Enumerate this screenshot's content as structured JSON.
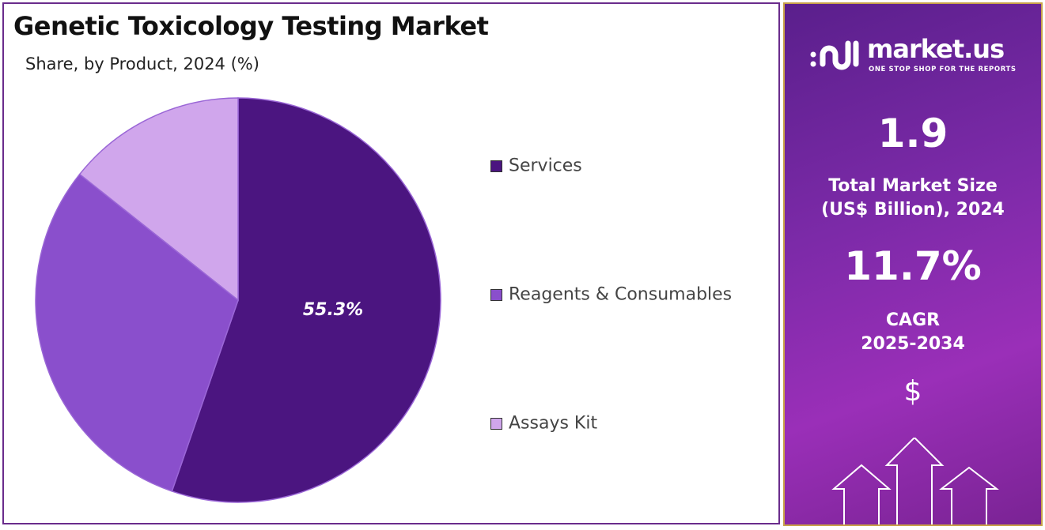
{
  "chart_data": {
    "type": "pie",
    "title": "Genetic Toxicology Testing Market",
    "subtitle": "Share, by Product, 2024 (%)",
    "categories": [
      "Services",
      "Reagents & Consumables",
      "Assays Kit"
    ],
    "values": [
      55.3,
      30.4,
      14.3
    ],
    "colors": [
      "#4b1580",
      "#8a4fcc",
      "#d0a6ec"
    ],
    "data_labels": [
      "55.3%",
      "",
      ""
    ],
    "legend_position": "right",
    "start_angle": "top, clockwise"
  },
  "side_panel": {
    "logo_name": "market.us",
    "logo_tagline": "ONE STOP SHOP FOR THE REPORTS",
    "market_size": "1.9",
    "market_size_label_1": "Total Market Size",
    "market_size_label_2": "(US$ Billion), 2024",
    "cagr": "11.7%",
    "cagr_label_1": "CAGR",
    "cagr_label_2": "2025-2034",
    "currency_icon": "$"
  }
}
